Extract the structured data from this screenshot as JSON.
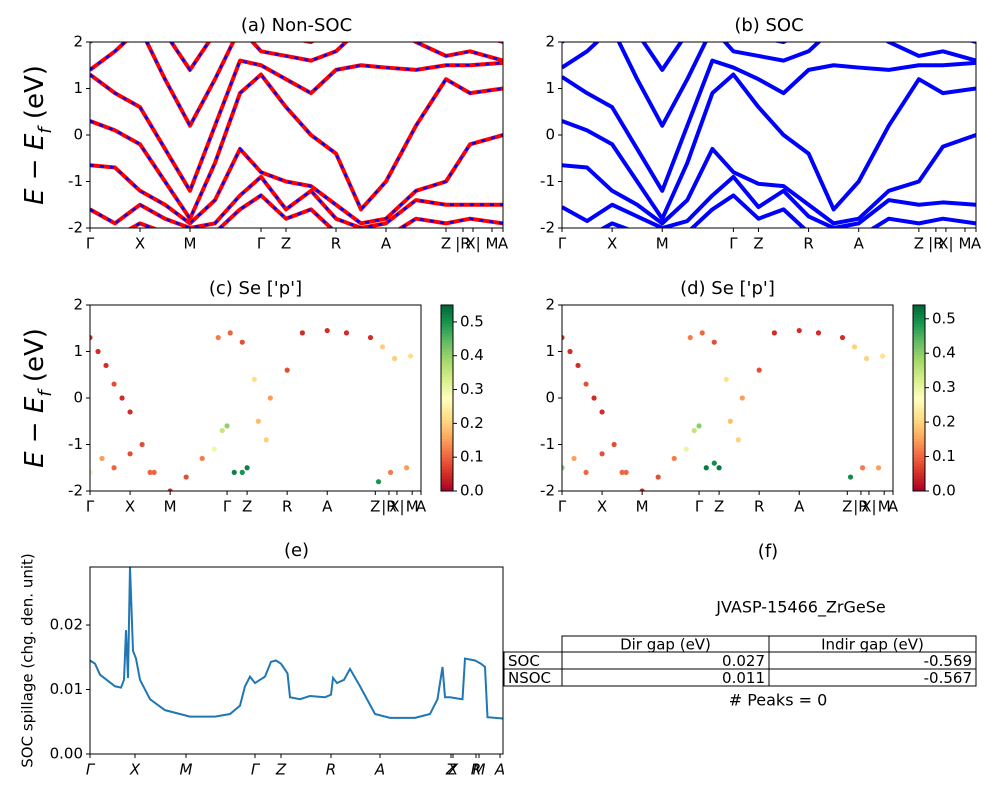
{
  "chart_data": [
    {
      "type": "band",
      "title": "(a) Non-SOC",
      "ylabel": {
        "main": "E − E",
        "sub": "f",
        "unit": " (eV)"
      },
      "xlim": [
        0,
        8.26
      ],
      "ylim": [
        -2,
        2
      ],
      "yticks": [
        -2,
        -1,
        0,
        1,
        2
      ],
      "xticks": [
        {
          "value": 0,
          "label": "Γ"
        },
        {
          "value": 1,
          "label": "X"
        },
        {
          "value": 2,
          "label": "M"
        },
        {
          "value": 3.42,
          "label": "Γ"
        },
        {
          "value": 3.92,
          "label": "Z"
        },
        {
          "value": 4.92,
          "label": "R"
        },
        {
          "value": 5.92,
          "label": "A"
        },
        {
          "value": 7.12,
          "label": "Z"
        },
        {
          "value": 7.46,
          "label": "|R"
        },
        {
          "value": 7.66,
          "label": "X|"
        },
        {
          "value": 8.04,
          "label": "M"
        },
        {
          "value": 8.26,
          "label": "A"
        }
      ],
      "overlay_color": "#0000ff",
      "x": [
        0,
        0.5,
        1,
        1.5,
        2,
        2.5,
        3,
        3.42,
        3.92,
        4.42,
        4.92,
        5.42,
        5.92,
        6.52,
        7.12,
        7.6,
        8.26
      ],
      "series": [
        {
          "color": "#ff0000",
          "values": [
            -1.6,
            -1.9,
            -1.5,
            -1.8,
            -2.0,
            -1.9,
            -1.3,
            -0.9,
            -1.6,
            -1.2,
            -1.8,
            -2.0,
            -1.9,
            -1.4,
            -1.5,
            -1.5,
            -1.5
          ]
        },
        {
          "color": "#ff0000",
          "values": [
            -0.65,
            -0.7,
            -1.2,
            -1.5,
            -1.9,
            -1.4,
            -0.3,
            -0.8,
            -1.0,
            -1.1,
            -1.5,
            -1.9,
            -1.8,
            -1.2,
            -1.0,
            -0.2,
            0.0
          ]
        },
        {
          "color": "#ff0000",
          "values": [
            0.3,
            0.1,
            -0.2,
            -1.0,
            -1.8,
            -0.6,
            0.9,
            1.3,
            0.6,
            0.0,
            -0.4,
            -1.6,
            -1.0,
            0.2,
            1.2,
            0.9,
            1.0
          ]
        },
        {
          "color": "#ff0000",
          "values": [
            1.3,
            0.9,
            0.6,
            -0.3,
            -1.2,
            0.2,
            1.6,
            1.5,
            1.2,
            0.9,
            1.4,
            1.5,
            1.45,
            1.4,
            1.5,
            1.5,
            1.55
          ]
        },
        {
          "color": "#ff0000",
          "values": [
            1.4,
            1.8,
            2.3,
            1.2,
            0.2,
            1.2,
            2.3,
            1.8,
            1.7,
            1.6,
            1.8,
            2.3,
            2.4,
            2.0,
            1.7,
            1.8,
            1.6
          ]
        },
        {
          "color": "#ff0000",
          "values": [
            2.0,
            2.4,
            2.6,
            2.2,
            1.4,
            2.2,
            2.6,
            2.2,
            2.1,
            2.0,
            2.3,
            2.5,
            2.6,
            2.4,
            2.2,
            2.2,
            2.0
          ]
        },
        {
          "color": "#ff0000",
          "values": [
            -2.3,
            -2.2,
            -1.9,
            -2.1,
            -2.3,
            -2.1,
            -1.6,
            -1.3,
            -1.8,
            -1.6,
            -2.1,
            -2.3,
            -2.2,
            -1.8,
            -1.9,
            -1.8,
            -1.9
          ]
        }
      ]
    },
    {
      "type": "band",
      "title": "(b) SOC",
      "xlim": [
        0,
        8.26
      ],
      "ylim": [
        -2,
        2
      ],
      "yticks": [
        -2,
        -1,
        0,
        1,
        2
      ],
      "xticks": [
        {
          "value": 0,
          "label": "Γ"
        },
        {
          "value": 1,
          "label": "X"
        },
        {
          "value": 2,
          "label": "M"
        },
        {
          "value": 3.42,
          "label": "Γ"
        },
        {
          "value": 3.92,
          "label": "Z"
        },
        {
          "value": 4.92,
          "label": "R"
        },
        {
          "value": 5.92,
          "label": "A"
        },
        {
          "value": 7.12,
          "label": "Z"
        },
        {
          "value": 7.46,
          "label": "|R"
        },
        {
          "value": 7.66,
          "label": "X|"
        },
        {
          "value": 8.04,
          "label": "M"
        },
        {
          "value": 8.26,
          "label": "A"
        }
      ],
      "x": [
        0,
        0.5,
        1,
        1.5,
        2,
        2.5,
        3,
        3.42,
        3.92,
        4.42,
        4.92,
        5.42,
        5.92,
        6.52,
        7.12,
        7.6,
        8.26
      ],
      "series": [
        {
          "color": "#0000ff",
          "values": [
            -1.55,
            -1.85,
            -1.5,
            -1.75,
            -2.0,
            -1.85,
            -1.3,
            -0.9,
            -1.55,
            -1.2,
            -1.75,
            -2.0,
            -1.9,
            -1.4,
            -1.5,
            -1.45,
            -1.5
          ]
        },
        {
          "color": "#0000ff",
          "values": [
            -0.65,
            -0.7,
            -1.2,
            -1.5,
            -1.9,
            -1.4,
            -0.3,
            -0.8,
            -1.05,
            -1.1,
            -1.5,
            -1.9,
            -1.8,
            -1.2,
            -1.0,
            -0.25,
            0.0
          ]
        },
        {
          "color": "#0000ff",
          "values": [
            0.3,
            0.1,
            -0.2,
            -1.0,
            -1.8,
            -0.6,
            0.9,
            1.3,
            0.6,
            0.0,
            -0.4,
            -1.6,
            -1.0,
            0.2,
            1.2,
            0.9,
            1.0
          ]
        },
        {
          "color": "#0000ff",
          "values": [
            1.25,
            0.9,
            0.6,
            -0.3,
            -1.2,
            0.2,
            1.6,
            1.45,
            1.2,
            0.9,
            1.4,
            1.5,
            1.45,
            1.4,
            1.5,
            1.5,
            1.55
          ]
        },
        {
          "color": "#0000ff",
          "values": [
            1.45,
            1.8,
            2.3,
            1.2,
            0.2,
            1.2,
            2.3,
            1.8,
            1.7,
            1.6,
            1.8,
            2.3,
            2.4,
            2.0,
            1.7,
            1.8,
            1.6
          ]
        },
        {
          "color": "#0000ff",
          "values": [
            2.0,
            2.4,
            2.6,
            2.2,
            1.4,
            2.2,
            2.6,
            2.2,
            2.1,
            2.0,
            2.3,
            2.5,
            2.6,
            2.4,
            2.2,
            2.2,
            2.0
          ]
        },
        {
          "color": "#0000ff",
          "values": [
            -2.3,
            -2.2,
            -1.9,
            -2.1,
            -2.3,
            -2.1,
            -1.6,
            -1.3,
            -1.8,
            -1.6,
            -2.1,
            -2.3,
            -2.2,
            -1.8,
            -1.9,
            -1.8,
            -1.9
          ]
        }
      ]
    },
    {
      "type": "scatter",
      "title": "(c)  Se ['p']",
      "ylabel": {
        "main": "E − E",
        "sub": "f",
        "unit": " (eV)"
      },
      "xlim": [
        0,
        8.26
      ],
      "ylim": [
        -2,
        2
      ],
      "yticks": [
        -2,
        -1,
        0,
        1,
        2
      ],
      "xticks": [
        {
          "value": 0,
          "label": "Γ"
        },
        {
          "value": 1,
          "label": "X"
        },
        {
          "value": 2,
          "label": "M"
        },
        {
          "value": 3.42,
          "label": "Γ"
        },
        {
          "value": 3.92,
          "label": "Z"
        },
        {
          "value": 4.92,
          "label": "R"
        },
        {
          "value": 5.92,
          "label": "A"
        },
        {
          "value": 7.12,
          "label": "Z"
        },
        {
          "value": 7.46,
          "label": "|R"
        },
        {
          "value": 7.66,
          "label": "X|"
        },
        {
          "value": 8.04,
          "label": "M"
        },
        {
          "value": 8.26,
          "label": "A"
        }
      ],
      "colorbar": {
        "clim": [
          0,
          0.55
        ],
        "ticks": [
          {
            "value": 0,
            "label": "0.0"
          },
          {
            "value": 0.1,
            "label": "0.1"
          },
          {
            "value": 0.2,
            "label": "0.2"
          },
          {
            "value": 0.3,
            "label": "0.3"
          },
          {
            "value": 0.4,
            "label": "0.4"
          },
          {
            "value": 0.5,
            "label": "0.5"
          }
        ],
        "colors": [
          "#a50026",
          "#d73027",
          "#f46d43",
          "#fdae61",
          "#fee08b",
          "#ffffbf",
          "#d9ef8b",
          "#a6d96a",
          "#66bd63",
          "#1a9850",
          "#006837"
        ]
      },
      "x": [
        0,
        0.2,
        0.4,
        0.6,
        0.8,
        1.0,
        1.3,
        1.6,
        2.0,
        2.4,
        2.8,
        3.1,
        3.3,
        3.42,
        3.6,
        3.8,
        3.92,
        4.2,
        4.5,
        4.92,
        5.3,
        5.92,
        6.4,
        7.0,
        7.3,
        7.6,
        8.0,
        0,
        0.3,
        0.6,
        1.0,
        1.5,
        3.2,
        3.5,
        3.8,
        4.1,
        4.4,
        7.2,
        7.5,
        7.9
      ],
      "y": [
        1.3,
        1.0,
        0.7,
        0.3,
        0.0,
        -0.3,
        -1.0,
        -1.6,
        -2.0,
        -1.7,
        -1.3,
        -1.1,
        -0.7,
        -0.6,
        -1.6,
        -1.6,
        -1.5,
        -0.5,
        0.0,
        0.6,
        1.4,
        1.45,
        1.4,
        1.3,
        1.1,
        0.85,
        0.9,
        -1.6,
        -1.3,
        -1.5,
        -1.2,
        -1.6,
        1.3,
        1.4,
        1.2,
        0.4,
        -0.9,
        -1.8,
        -1.6,
        -1.5
      ],
      "c": [
        0.05,
        0.05,
        0.05,
        0.08,
        0.05,
        0.05,
        0.08,
        0.1,
        0.05,
        0.08,
        0.12,
        0.3,
        0.35,
        0.4,
        0.52,
        0.5,
        0.52,
        0.18,
        0.15,
        0.08,
        0.05,
        0.05,
        0.05,
        0.05,
        0.2,
        0.2,
        0.22,
        0.3,
        0.15,
        0.1,
        0.08,
        0.1,
        0.12,
        0.1,
        0.08,
        0.22,
        0.2,
        0.5,
        0.12,
        0.15
      ]
    },
    {
      "type": "scatter",
      "title": "(d) Se ['p']",
      "xlim": [
        0,
        8.26
      ],
      "ylim": [
        -2,
        2
      ],
      "yticks": [
        -2,
        -1,
        0,
        1,
        2
      ],
      "xticks": [
        {
          "value": 0,
          "label": "Γ"
        },
        {
          "value": 1,
          "label": "X"
        },
        {
          "value": 2,
          "label": "M"
        },
        {
          "value": 3.42,
          "label": "Γ"
        },
        {
          "value": 3.92,
          "label": "Z"
        },
        {
          "value": 4.92,
          "label": "R"
        },
        {
          "value": 5.92,
          "label": "A"
        },
        {
          "value": 7.12,
          "label": "Z"
        },
        {
          "value": 7.46,
          "label": "|R"
        },
        {
          "value": 7.66,
          "label": "X|"
        },
        {
          "value": 8.04,
          "label": "M"
        },
        {
          "value": 8.26,
          "label": "A"
        }
      ],
      "colorbar": {
        "clim": [
          0,
          0.54
        ],
        "ticks": [
          {
            "value": 0,
            "label": "0.0"
          },
          {
            "value": 0.1,
            "label": "0.1"
          },
          {
            "value": 0.2,
            "label": "0.2"
          },
          {
            "value": 0.3,
            "label": "0.3"
          },
          {
            "value": 0.4,
            "label": "0.4"
          },
          {
            "value": 0.5,
            "label": "0.5"
          }
        ],
        "colors": [
          "#a50026",
          "#d73027",
          "#f46d43",
          "#fdae61",
          "#fee08b",
          "#ffffbf",
          "#d9ef8b",
          "#a6d96a",
          "#66bd63",
          "#1a9850",
          "#006837"
        ]
      },
      "x": [
        0,
        0.2,
        0.4,
        0.6,
        0.8,
        1.0,
        1.3,
        1.6,
        2.0,
        2.4,
        2.8,
        3.1,
        3.3,
        3.42,
        3.6,
        3.8,
        3.92,
        4.2,
        4.5,
        4.92,
        5.3,
        5.92,
        6.4,
        7.0,
        7.3,
        7.6,
        8.0,
        0,
        0.3,
        0.6,
        1.0,
        1.5,
        3.2,
        3.5,
        3.8,
        4.1,
        4.4,
        7.2,
        7.5,
        7.9
      ],
      "y": [
        1.3,
        1.0,
        0.7,
        0.3,
        0.0,
        -0.3,
        -1.0,
        -1.6,
        -2.0,
        -1.7,
        -1.3,
        -1.1,
        -0.7,
        -0.6,
        -1.5,
        -1.4,
        -1.5,
        -0.5,
        0.0,
        0.6,
        1.4,
        1.45,
        1.4,
        1.3,
        1.1,
        0.85,
        0.9,
        -1.5,
        -1.3,
        -1.6,
        -1.2,
        -1.6,
        1.3,
        1.4,
        1.2,
        0.4,
        -0.9,
        -1.7,
        -1.5,
        -1.5
      ],
      "c": [
        0.05,
        0.05,
        0.05,
        0.08,
        0.05,
        0.05,
        0.08,
        0.1,
        0.05,
        0.08,
        0.12,
        0.3,
        0.35,
        0.4,
        0.52,
        0.5,
        0.52,
        0.18,
        0.15,
        0.08,
        0.05,
        0.05,
        0.05,
        0.05,
        0.2,
        0.2,
        0.22,
        0.4,
        0.15,
        0.1,
        0.08,
        0.1,
        0.12,
        0.1,
        0.08,
        0.22,
        0.2,
        0.5,
        0.12,
        0.15
      ]
    },
    {
      "type": "line",
      "title": "(e)",
      "ylabel": "SOC spillage (chg. den. unit)",
      "color": "#1f77b4",
      "xlim": [
        0,
        8.26
      ],
      "ylim": [
        0,
        0.029
      ],
      "yticks": [
        {
          "value": 0,
          "label": "0.00"
        },
        {
          "value": 0.01,
          "label": "0.01"
        },
        {
          "value": 0.02,
          "label": "0.02"
        }
      ],
      "xticks": [
        {
          "value": 0,
          "label": "Γ"
        },
        {
          "value": 0.9,
          "label": "X"
        },
        {
          "value": 1.92,
          "label": "M"
        },
        {
          "value": 3.3,
          "label": "Γ"
        },
        {
          "value": 3.82,
          "label": "Z"
        },
        {
          "value": 4.82,
          "label": "R"
        },
        {
          "value": 5.8,
          "label": "A"
        },
        {
          "value": 7.22,
          "label": "Z"
        },
        {
          "value": 7.26,
          "label": "X"
        },
        {
          "value": 7.72,
          "label": "R"
        },
        {
          "value": 7.78,
          "label": "M"
        },
        {
          "value": 8.2,
          "label": "A"
        }
      ],
      "x": [
        0,
        0.1,
        0.2,
        0.5,
        0.62,
        0.68,
        0.72,
        0.76,
        0.8,
        0.86,
        0.92,
        1.0,
        1.2,
        1.5,
        2.0,
        2.5,
        2.8,
        3.0,
        3.1,
        3.2,
        3.3,
        3.5,
        3.62,
        3.72,
        3.82,
        3.95,
        4.0,
        4.2,
        4.4,
        4.7,
        4.82,
        4.86,
        4.94,
        5.08,
        5.2,
        5.4,
        5.7,
        6.0,
        6.5,
        6.8,
        6.95,
        7.05,
        7.1,
        7.2,
        7.35,
        7.45,
        7.5,
        7.7,
        7.82,
        7.9,
        7.95,
        8.26
      ],
      "values": [
        0.0145,
        0.014,
        0.0123,
        0.0105,
        0.0103,
        0.0115,
        0.0192,
        0.0118,
        0.029,
        0.016,
        0.0148,
        0.0115,
        0.0085,
        0.0068,
        0.0058,
        0.0058,
        0.0062,
        0.0075,
        0.0105,
        0.012,
        0.011,
        0.012,
        0.0143,
        0.0145,
        0.014,
        0.0125,
        0.0088,
        0.0085,
        0.009,
        0.0088,
        0.0092,
        0.0118,
        0.011,
        0.0115,
        0.0132,
        0.0105,
        0.0062,
        0.0056,
        0.0056,
        0.0062,
        0.0085,
        0.0135,
        0.0088,
        0.0088,
        0.0086,
        0.0085,
        0.0148,
        0.0145,
        0.014,
        0.0135,
        0.0057,
        0.0055
      ]
    },
    {
      "type": "table",
      "title": "(f)",
      "subtitle": "JVASP-15466_ZrGeSe",
      "columns": [
        "Dir gap (eV)",
        "Indir gap (eV)"
      ],
      "rows": [
        {
          "label": "SOC",
          "cells": [
            0.027,
            -0.569
          ]
        },
        {
          "label": "NSOC",
          "cells": [
            0.011,
            -0.567
          ]
        }
      ],
      "note": "# Peaks = 0"
    }
  ]
}
